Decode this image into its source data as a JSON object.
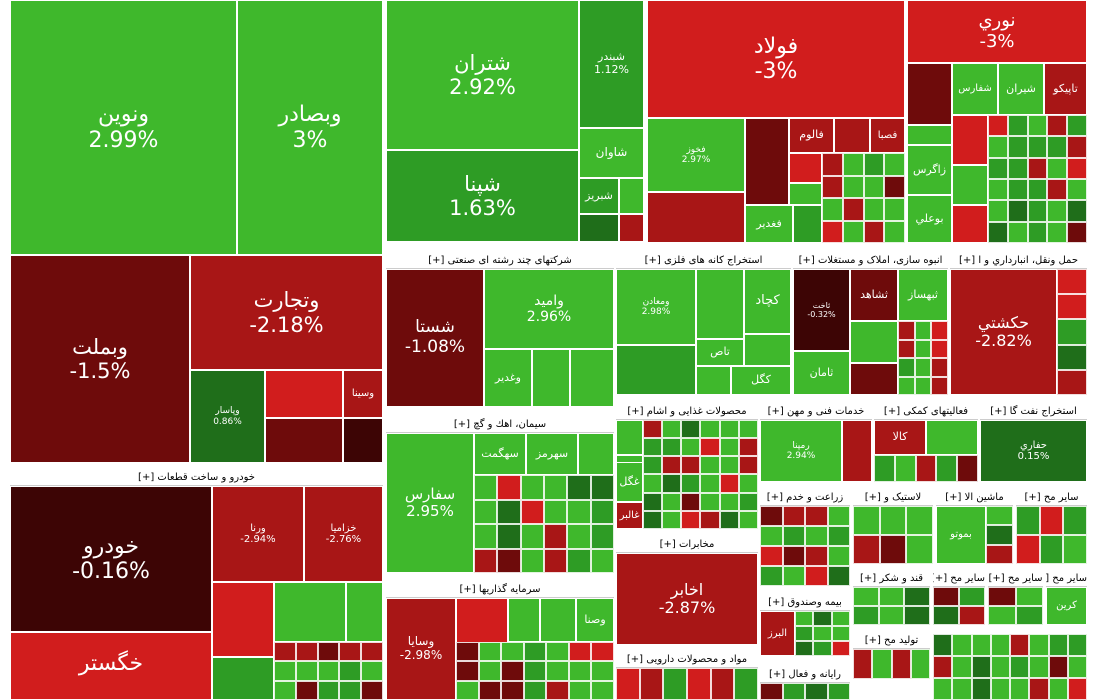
{
  "colors": {
    "green_bright": "#3fb82c",
    "green_mid": "#2e9c25",
    "green_dark": "#1f6e1a",
    "red_bright": "#d11d1d",
    "red_mid": "#a81616",
    "red_dark": "#6e0b0b",
    "red_deep": "#3d0505"
  },
  "tiles": [
    {
      "name": "ونوین",
      "pct": "2.99%",
      "color": "green_bright"
    },
    {
      "name": "وبصادر",
      "pct": "3%",
      "color": "green_bright"
    },
    {
      "name": "وبملت",
      "pct": "-1.5%",
      "color": "red_dark"
    },
    {
      "name": "وتجارت",
      "pct": "-2.18%",
      "color": "red_mid"
    },
    {
      "name": "وپاسار",
      "pct": "0.86%",
      "color": "green_dark"
    },
    {
      "name": "وسینا",
      "pct": "",
      "color": "red_mid"
    },
    {
      "name": "شتران",
      "pct": "2.92%",
      "color": "green_bright"
    },
    {
      "name": "شپنا",
      "pct": "1.63%",
      "color": "green_mid"
    },
    {
      "name": "شبندر",
      "pct": "1.12%",
      "color": "green_mid"
    },
    {
      "name": "شاوان",
      "pct": "",
      "color": "green_bright"
    },
    {
      "name": "شبریز",
      "pct": "",
      "color": "green_mid"
    },
    {
      "name": "فولاد",
      "pct": "-3%",
      "color": "red_bright"
    },
    {
      "name": "فخوز",
      "pct": "2.97%",
      "color": "green_bright"
    },
    {
      "name": "فالوم",
      "pct": "",
      "color": "red_mid"
    },
    {
      "name": "فصبا",
      "pct": "",
      "color": "red_mid"
    },
    {
      "name": "فغدیر",
      "pct": "",
      "color": "green_bright"
    },
    {
      "name": "نوري",
      "pct": "-3%",
      "color": "red_bright"
    },
    {
      "name": "تاپیکو",
      "pct": "",
      "color": "red_mid"
    },
    {
      "name": "شیران",
      "pct": "",
      "color": "green_bright"
    },
    {
      "name": "شفارس",
      "pct": "",
      "color": "green_bright"
    },
    {
      "name": "زاگرس",
      "pct": "",
      "color": "green_bright"
    },
    {
      "name": "بوعلي",
      "pct": "",
      "color": "green_bright"
    },
    {
      "name": "شستا",
      "pct": "-1.08%",
      "color": "red_dark"
    },
    {
      "name": "وامید",
      "pct": "2.96%",
      "color": "green_bright"
    },
    {
      "name": "وغدیر",
      "pct": "",
      "color": "green_bright"
    },
    {
      "name": "ومعادن",
      "pct": "2.98%",
      "color": "green_bright"
    },
    {
      "name": "کچاد",
      "pct": "",
      "color": "green_bright"
    },
    {
      "name": "کگل",
      "pct": "",
      "color": "green_bright"
    },
    {
      "name": "تاص",
      "pct": "",
      "color": "green_bright"
    },
    {
      "name": "ثاخت",
      "pct": "-0.32%",
      "color": "red_deep"
    },
    {
      "name": "ثشاهد",
      "pct": "",
      "color": "red_dark"
    },
    {
      "name": "ثبهساز",
      "pct": "",
      "color": "green_bright"
    },
    {
      "name": "ثامان",
      "pct": "",
      "color": "green_bright"
    },
    {
      "name": "حکشتي",
      "pct": "-2.82%",
      "color": "red_mid"
    },
    {
      "name": "خودرو",
      "pct": "-0.16%",
      "color": "red_deep"
    },
    {
      "name": "ورنا",
      "pct": "-2.94%",
      "color": "red_mid"
    },
    {
      "name": "خزامیا",
      "pct": "-2.76%",
      "color": "red_mid"
    },
    {
      "name": "خگستر",
      "pct": "",
      "color": "red_bright"
    },
    {
      "name": "سفارس",
      "pct": "2.95%",
      "color": "green_bright"
    },
    {
      "name": "سهگمت",
      "pct": "",
      "color": "green_bright"
    },
    {
      "name": "سهرمز",
      "pct": "",
      "color": "green_bright"
    },
    {
      "name": "وسایا",
      "pct": "-2.98%",
      "color": "red_mid"
    },
    {
      "name": "وصنا",
      "pct": "",
      "color": "green_bright"
    },
    {
      "name": "غگل",
      "pct": "",
      "color": "green_bright"
    },
    {
      "name": "غالبر",
      "pct": "",
      "color": "red_mid"
    },
    {
      "name": "رمپنا",
      "pct": "2.94%",
      "color": "green_bright"
    },
    {
      "name": "کالا",
      "pct": "",
      "color": "red_mid"
    },
    {
      "name": "حفاري",
      "pct": "0.15%",
      "color": "green_dark"
    },
    {
      "name": "اخابر",
      "pct": "-2.87%",
      "color": "red_mid"
    },
    {
      "name": "بموتو",
      "pct": "",
      "color": "green_bright"
    },
    {
      "name": "کرین",
      "pct": "",
      "color": "green_bright"
    },
    {
      "name": "البرز",
      "pct": "",
      "color": "red_mid"
    }
  ],
  "sections": [
    "شرکتهای چند رشته ای صنعتی [+]",
    "استخراج کانه های فلزی [+]",
    "انبوه سازی، املاک و مستغلات [+]",
    "حمل ونقل، انبارداري و ا [+]",
    "خودرو و ساخت قطعات [+]",
    "سیمان، اهك و گچ [+]",
    "محصولات غذایی و اشام [+]",
    "خدمات فنی و مهن [+]",
    "فعالیتهای کمکی [+]",
    "استخراج نفت گا [+]",
    "زراعت و خدم [+]",
    "لاستیک و [+]",
    "ماشین الا [+]",
    "سایر مح [+]",
    "مخابرات [+]",
    "سرمایه گذاریها [+]",
    "بیمه وصندوق [+]",
    "قند و شکر [+]",
    "تولید مح [+]",
    "مواد و محصولات دارویی [+]",
    "رایانه و فعال [+]"
  ]
}
